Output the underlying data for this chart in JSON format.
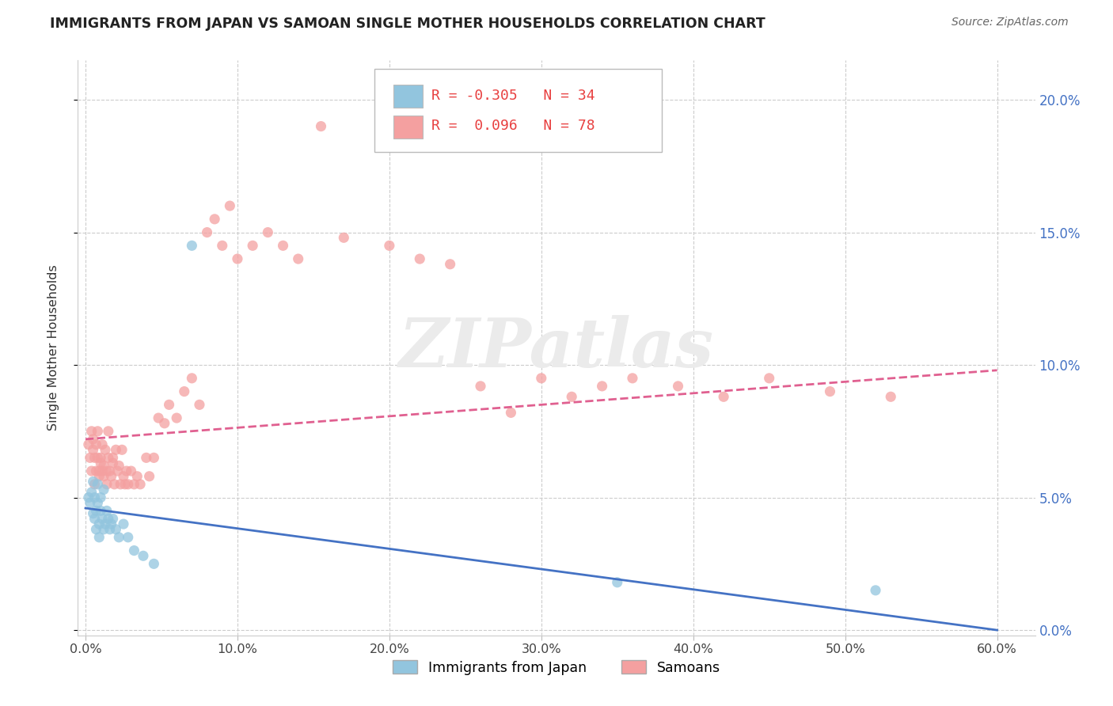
{
  "title": "IMMIGRANTS FROM JAPAN VS SAMOAN SINGLE MOTHER HOUSEHOLDS CORRELATION CHART",
  "source": "Source: ZipAtlas.com",
  "ylabel": "Single Mother Households",
  "legend_r1": "-0.305",
  "legend_n1": "N = 34",
  "legend_r2": "0.096",
  "legend_n2": "N = 78",
  "legend_label1": "Immigrants from Japan",
  "legend_label2": "Samoans",
  "watermark": "ZIPatlas",
  "color_japan": "#92C5DE",
  "color_samoan": "#F4A0A0",
  "color_japan_line": "#4472C4",
  "color_samoan_line": "#E06090",
  "xlim": [
    -0.005,
    0.625
  ],
  "ylim": [
    -0.002,
    0.215
  ],
  "xticks": [
    0.0,
    0.1,
    0.2,
    0.3,
    0.4,
    0.5,
    0.6
  ],
  "xtick_labels": [
    "0.0%",
    "10.0%",
    "20.0%",
    "30.0%",
    "40.0%",
    "50.0%",
    "60.0%"
  ],
  "yticks": [
    0.0,
    0.05,
    0.1,
    0.15,
    0.2
  ],
  "ytick_labels": [
    "0.0%",
    "5.0%",
    "10.0%",
    "15.0%",
    "20.0%"
  ],
  "japan_x": [
    0.002,
    0.003,
    0.004,
    0.005,
    0.005,
    0.006,
    0.006,
    0.007,
    0.007,
    0.008,
    0.008,
    0.009,
    0.009,
    0.01,
    0.01,
    0.011,
    0.012,
    0.012,
    0.013,
    0.014,
    0.015,
    0.016,
    0.017,
    0.018,
    0.02,
    0.022,
    0.025,
    0.028,
    0.032,
    0.038,
    0.045,
    0.07,
    0.35,
    0.52
  ],
  "japan_y": [
    0.05,
    0.048,
    0.052,
    0.044,
    0.056,
    0.042,
    0.05,
    0.045,
    0.038,
    0.048,
    0.055,
    0.04,
    0.035,
    0.05,
    0.045,
    0.042,
    0.038,
    0.053,
    0.04,
    0.045,
    0.042,
    0.038,
    0.04,
    0.042,
    0.038,
    0.035,
    0.04,
    0.035,
    0.03,
    0.028,
    0.025,
    0.145,
    0.018,
    0.015
  ],
  "samoan_x": [
    0.002,
    0.003,
    0.004,
    0.004,
    0.005,
    0.005,
    0.006,
    0.006,
    0.007,
    0.007,
    0.008,
    0.008,
    0.009,
    0.009,
    0.01,
    0.01,
    0.011,
    0.011,
    0.012,
    0.012,
    0.013,
    0.014,
    0.014,
    0.015,
    0.015,
    0.016,
    0.017,
    0.018,
    0.018,
    0.019,
    0.02,
    0.021,
    0.022,
    0.023,
    0.024,
    0.025,
    0.026,
    0.027,
    0.028,
    0.03,
    0.032,
    0.034,
    0.036,
    0.04,
    0.042,
    0.045,
    0.048,
    0.052,
    0.055,
    0.06,
    0.065,
    0.07,
    0.075,
    0.08,
    0.085,
    0.09,
    0.095,
    0.1,
    0.11,
    0.12,
    0.13,
    0.14,
    0.155,
    0.17,
    0.2,
    0.22,
    0.24,
    0.26,
    0.28,
    0.3,
    0.32,
    0.34,
    0.36,
    0.39,
    0.42,
    0.45,
    0.49,
    0.53
  ],
  "samoan_y": [
    0.07,
    0.065,
    0.075,
    0.06,
    0.068,
    0.072,
    0.055,
    0.065,
    0.07,
    0.06,
    0.065,
    0.075,
    0.06,
    0.058,
    0.065,
    0.063,
    0.07,
    0.06,
    0.058,
    0.062,
    0.068,
    0.055,
    0.06,
    0.065,
    0.075,
    0.06,
    0.058,
    0.065,
    0.063,
    0.055,
    0.068,
    0.06,
    0.062,
    0.055,
    0.068,
    0.058,
    0.055,
    0.06,
    0.055,
    0.06,
    0.055,
    0.058,
    0.055,
    0.065,
    0.058,
    0.065,
    0.08,
    0.078,
    0.085,
    0.08,
    0.09,
    0.095,
    0.085,
    0.15,
    0.155,
    0.145,
    0.16,
    0.14,
    0.145,
    0.15,
    0.145,
    0.14,
    0.19,
    0.148,
    0.145,
    0.14,
    0.138,
    0.092,
    0.082,
    0.095,
    0.088,
    0.092,
    0.095,
    0.092,
    0.088,
    0.095,
    0.09,
    0.088
  ],
  "japan_trend_x0": 0.0,
  "japan_trend_y0": 0.046,
  "japan_trend_x1": 0.6,
  "japan_trend_y1": 0.0,
  "samoan_trend_x0": 0.0,
  "samoan_trend_y0": 0.072,
  "samoan_trend_x1": 0.6,
  "samoan_trend_y1": 0.098
}
